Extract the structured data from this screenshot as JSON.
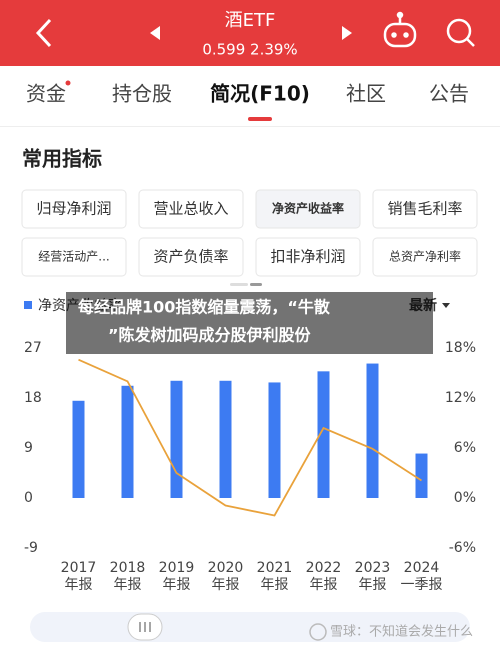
{
  "header": {
    "title": "酒ETF",
    "quote": "0.599 2.39%"
  },
  "tabs": [
    "资金",
    "持仓股",
    "简况(F10)",
    "社区",
    "公告"
  ],
  "section_title": "常用指标",
  "indicators": [
    "归母净利润",
    "营业总收入",
    "净资产收益率",
    "销售毛利率",
    "经营活动产...",
    "资产负债率",
    "扣非净利润",
    "总资产净利率"
  ],
  "chart_data": {
    "type": "combo",
    "period_selector": "最新",
    "categories": [
      "2017",
      "2018",
      "2019",
      "2020",
      "2021",
      "2022",
      "2023",
      "2024"
    ],
    "periods": [
      "年报",
      "年报",
      "年报",
      "年报",
      "年报",
      "年报",
      "年报",
      "一季报"
    ],
    "series": [
      {
        "name": "净资产收益率",
        "kind": "bar",
        "color": "#3d7bf2",
        "values": [
          17.5,
          20.2,
          21.1,
          21.1,
          20.8,
          22.8,
          24.2,
          8.0
        ]
      },
      {
        "kind": "line",
        "axis": "y2",
        "color": "#e9a23b",
        "values": [
          16.6,
          14.0,
          3.0,
          -0.9,
          -2.1,
          8.4,
          5.9,
          2.1
        ]
      }
    ],
    "ylim": [
      -9,
      27
    ],
    "yticks": [
      27,
      18,
      9,
      0,
      -9
    ],
    "y2lim": [
      -6,
      18
    ],
    "y2ticks": [
      {
        "value": 18,
        "label": "18%"
      },
      {
        "value": 12,
        "label": "12%"
      },
      {
        "value": 6,
        "label": "6%"
      },
      {
        "value": 0,
        "label": "0%"
      },
      {
        "value": -6,
        "label": "-6%"
      }
    ],
    "grid": false
  },
  "banner": {
    "lines": [
      "每经品牌100指数缩量震荡，“牛散",
      "”陈发树加码成分股伊利股份"
    ]
  },
  "watermark": "雪球：不知道会发生什么"
}
